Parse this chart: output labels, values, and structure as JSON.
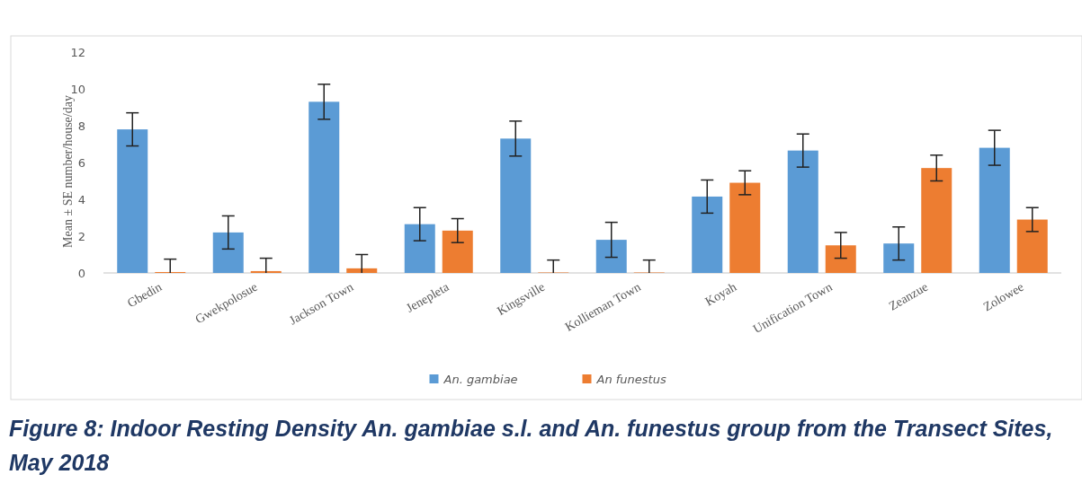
{
  "chart_data": {
    "type": "bar",
    "title": "Figure 8: Indoor Resting Density An. gambiae s.l. and An. funestus group from the Transect Sites, May 2018",
    "ylabel": "Mean ± SE number/house/day",
    "categories": [
      "Gbedin",
      "Gwekpolosue",
      "Jackson Town",
      "Jenepleta",
      "Kingsville",
      "Kollieman Town",
      "Koyah",
      "Unification Town",
      "Zeanzue",
      "Zolowee"
    ],
    "series": [
      {
        "name": "An. gambiae",
        "color": "#5b9bd5",
        "values": [
          7.8,
          2.2,
          9.3,
          2.65,
          7.3,
          1.8,
          4.15,
          6.65,
          1.6,
          6.8
        ],
        "errors": [
          0.9,
          0.9,
          0.95,
          0.9,
          0.95,
          0.95,
          0.9,
          0.9,
          0.9,
          0.95
        ]
      },
      {
        "name": "An funestus",
        "color": "#ed7d31",
        "values": [
          0.05,
          0.1,
          0.25,
          2.3,
          0,
          0,
          4.9,
          1.5,
          5.7,
          2.9
        ],
        "errors": [
          [
            0,
            0.75
          ],
          [
            0,
            0.8
          ],
          [
            0,
            1
          ],
          0.65,
          [
            0,
            0.7
          ],
          [
            0,
            0.7
          ],
          0.65,
          0.7,
          0.7,
          0.65
        ]
      }
    ],
    "ylim": [
      0,
      12
    ],
    "yticks": [
      0,
      2,
      4,
      6,
      8,
      10,
      12
    ],
    "legend": "bottom"
  }
}
